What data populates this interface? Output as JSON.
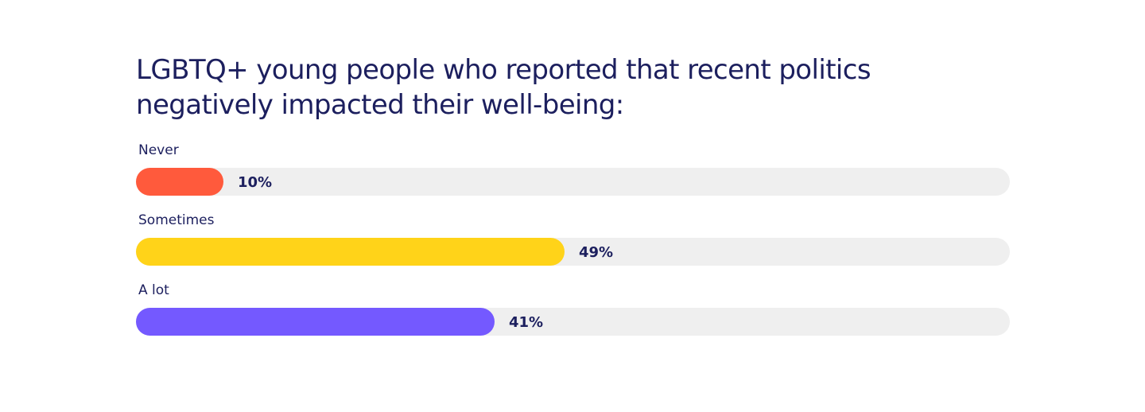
{
  "chart_data": {
    "type": "bar",
    "orientation": "horizontal",
    "title": "LGBTQ+ young people who reported that recent politics negatively impacted their well-being:",
    "xlim": [
      0,
      100
    ],
    "grid": false,
    "categories": [
      "Never",
      "Sometimes",
      "A lot"
    ],
    "values": [
      10,
      49,
      41
    ],
    "value_labels": [
      "10%",
      "49%",
      "41%"
    ],
    "colors": [
      "#ff5a3c",
      "#ffd319",
      "#7459ff"
    ],
    "track_color": "#efefef"
  }
}
